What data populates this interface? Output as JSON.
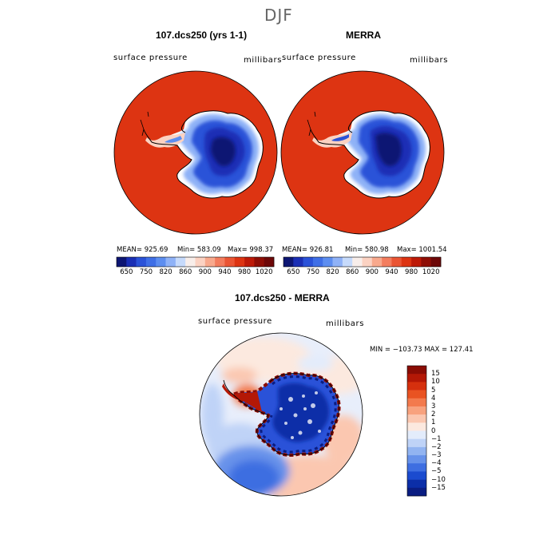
{
  "figure": {
    "title": "DJF"
  },
  "panels": [
    {
      "name": "107.dcs250 (yrs 1-1)",
      "variable": "surface pressure",
      "units": "millibars",
      "mean_label": "MEAN= 925.69",
      "min_label": "Min= 583.09",
      "max_label": "Max= 998.37",
      "mean": 925.69,
      "min": 583.09,
      "max": 998.37
    },
    {
      "name": "MERRA",
      "variable": "surface pressure",
      "units": "millibars",
      "mean_label": "MEAN= 926.81",
      "min_label": "Min= 580.98",
      "max_label": "Max= 1001.54",
      "mean": 926.81,
      "min": 580.98,
      "max": 1001.54
    },
    {
      "name": "107.dcs250 - MERRA",
      "variable": "surface pressure",
      "units": "millibars",
      "minmax_label": "MIN = −103.73 MAX = 127.41",
      "min": -103.73,
      "max": 127.41
    }
  ],
  "colorbars": {
    "abs_ticks": [
      "650",
      "750",
      "820",
      "860",
      "900",
      "940",
      "980",
      "1020"
    ],
    "abs_colors": [
      "#0d1673",
      "#1a2fb5",
      "#2a52d8",
      "#3f6fe6",
      "#5d8ef0",
      "#8fb2f7",
      "#c6dafb",
      "#f8eeea",
      "#fbd2c2",
      "#f8a98d",
      "#f37d5e",
      "#ea5534",
      "#dd3412",
      "#bd1a08",
      "#8e0e06",
      "#6d0808"
    ],
    "diff_ticks": [
      "15",
      "10",
      "5",
      "4",
      "3",
      "2",
      "1",
      "0",
      "−1",
      "−2",
      "−3",
      "−4",
      "−5",
      "−10",
      "−15"
    ],
    "diff_colors": [
      "#8a0c04",
      "#b41806",
      "#d5300e",
      "#e95322",
      "#f37a4d",
      "#f8a27e",
      "#fbc7b0",
      "#fce9df",
      "#e3ecfb",
      "#bfd3f7",
      "#92b4f1",
      "#6792ea",
      "#3e6ee1",
      "#1b4bcf",
      "#0b2ea8",
      "#0a1d82"
    ]
  }
}
